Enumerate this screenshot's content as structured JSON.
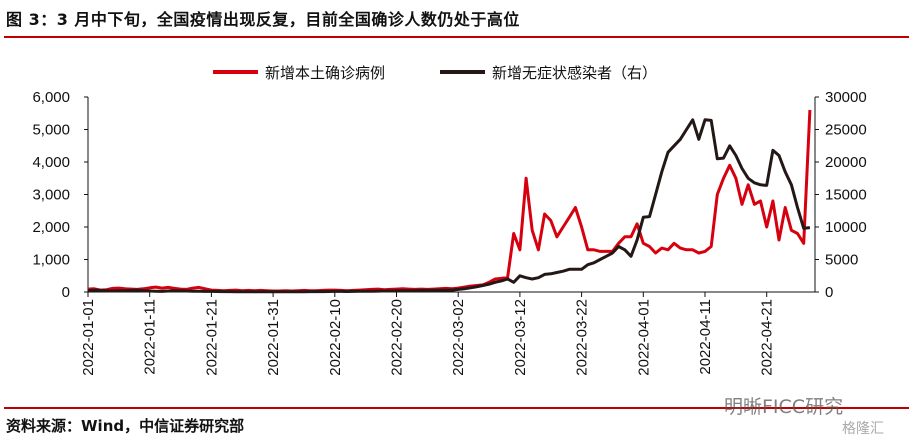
{
  "title": "图 3：3 月中下旬，全国疫情出现反复，目前全国确诊人数仍处于高位",
  "source": "资料来源：Wind，中信证券研究部",
  "watermark": "明晰FICC研究",
  "watermark2": "格隆汇",
  "chart_data": {
    "type": "line",
    "start_date": "2022-01-01",
    "x_tick_labels": [
      "2022-01-01",
      "2022-01-11",
      "2022-01-21",
      "2022-01-31",
      "2022-02-10",
      "2022-02-20",
      "2022-03-02",
      "2022-03-12",
      "2022-03-22",
      "2022-04-01",
      "2022-04-11",
      "2022-04-21"
    ],
    "y_left": {
      "ticks": [
        "0",
        "1,000",
        "2,000",
        "3,000",
        "4,000",
        "5,000",
        "6,000"
      ],
      "lim": [
        0,
        6000
      ]
    },
    "y_right": {
      "ticks": [
        "0",
        "5000",
        "10000",
        "15000",
        "20000",
        "25000",
        "30000"
      ],
      "lim": [
        0,
        30000
      ]
    },
    "legend_position": "top",
    "series": [
      {
        "name": "新增本土确诊病例",
        "axis": "left",
        "color": "#d7000f",
        "values": [
          90,
          100,
          60,
          70,
          110,
          120,
          100,
          90,
          80,
          100,
          130,
          150,
          120,
          140,
          110,
          90,
          80,
          120,
          140,
          100,
          60,
          50,
          40,
          50,
          60,
          40,
          50,
          40,
          50,
          40,
          30,
          30,
          40,
          30,
          40,
          50,
          40,
          40,
          50,
          60,
          60,
          50,
          40,
          50,
          60,
          70,
          80,
          90,
          70,
          80,
          90,
          100,
          90,
          80,
          90,
          80,
          90,
          100,
          110,
          100,
          120,
          150,
          180,
          200,
          220,
          300,
          400,
          420,
          450,
          1800,
          1300,
          3500,
          1900,
          1300,
          2400,
          2200,
          1700,
          2000,
          2300,
          2600,
          2000,
          1300,
          1300,
          1250,
          1250,
          1250,
          1500,
          1700,
          1700,
          2100,
          1500,
          1400,
          1200,
          1350,
          1300,
          1500,
          1350,
          1300,
          1300,
          1200,
          1250,
          1400,
          3000,
          3500,
          3900,
          3500,
          2700,
          3300,
          2700,
          2800,
          2000,
          2800,
          1600,
          2600,
          1900,
          1800,
          1500,
          5600
        ]
      },
      {
        "name": "新增无症状感染者（右）",
        "axis": "right",
        "color": "#231815",
        "values": [
          200,
          300,
          250,
          200,
          150,
          180,
          200,
          250,
          300,
          200,
          150,
          120,
          100,
          150,
          200,
          180,
          150,
          130,
          120,
          100,
          100,
          80,
          60,
          60,
          50,
          50,
          40,
          40,
          50,
          40,
          30,
          30,
          40,
          50,
          40,
          40,
          60,
          70,
          60,
          80,
          100,
          90,
          80,
          100,
          120,
          130,
          120,
          140,
          150,
          160,
          170,
          180,
          200,
          220,
          250,
          240,
          260,
          280,
          300,
          300,
          400,
          500,
          650,
          800,
          1000,
          1200,
          1500,
          1700,
          2000,
          1500,
          2500,
          2200,
          2000,
          2200,
          2700,
          2800,
          3000,
          3200,
          3500,
          3500,
          3500,
          4200,
          4500,
          5000,
          5500,
          6000,
          7000,
          6500,
          5500,
          8000,
          11500,
          11600,
          15000,
          18500,
          21500,
          22500,
          23500,
          25000,
          26500,
          23500,
          26500,
          26400,
          20500,
          20600,
          22500,
          21000,
          19000,
          17500,
          16800,
          16500,
          16400,
          21800,
          21000,
          18500,
          16500,
          13000,
          9800,
          9900
        ]
      }
    ]
  }
}
